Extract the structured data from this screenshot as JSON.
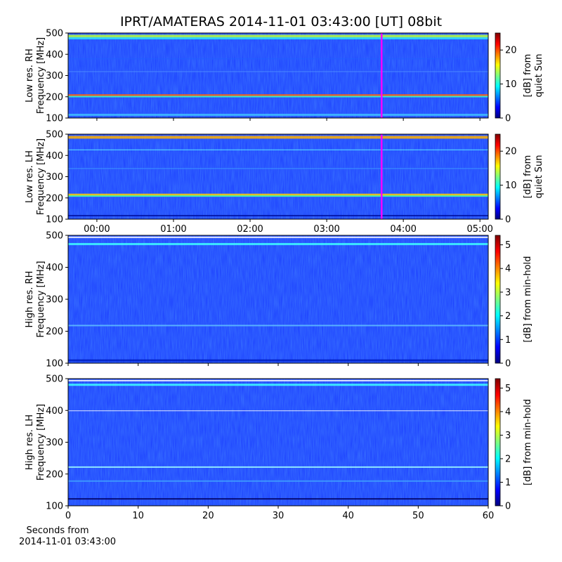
{
  "figure_title": "IPRT/AMATERAS 2014-11-01 03:43:00 [UT]   08bit",
  "chart_data": [
    {
      "type": "heatmap",
      "ylabel": [
        "Low res. RH",
        "Frequency [MHz]"
      ],
      "ylim": [
        100,
        500
      ],
      "yticks": [
        100,
        200,
        300,
        400,
        500
      ],
      "xlim": [
        -22.5,
        306.5
      ],
      "marker": 223,
      "marker_color": "#ff00ff",
      "colorbar_label": [
        "[dB] from",
        "quiet Sun"
      ],
      "clim": [
        0,
        25
      ],
      "cticks": [
        0,
        10,
        20
      ]
    },
    {
      "type": "heatmap",
      "ylabel": [
        "Low res. LH",
        "Frequency [MHz]"
      ],
      "ylim": [
        100,
        500
      ],
      "yticks": [
        100,
        200,
        300,
        400,
        500
      ],
      "xlim": [
        -22.5,
        306.5
      ],
      "marker": 223,
      "marker_color": "#ff00ff",
      "xticks": [
        {
          "value": 0,
          "label": "00:00"
        },
        {
          "value": 60,
          "label": "01:00"
        },
        {
          "value": 120,
          "label": "02:00"
        },
        {
          "value": 180,
          "label": "03:00"
        },
        {
          "value": 240,
          "label": "04:00"
        },
        {
          "value": 300,
          "label": "05:00"
        }
      ],
      "colorbar_label": [
        "[dB] from",
        "quiet Sun"
      ],
      "clim": [
        0,
        25
      ],
      "cticks": [
        0,
        10,
        20
      ]
    },
    {
      "type": "heatmap",
      "ylabel": [
        "High res. RH",
        "Frequency [MHz]"
      ],
      "ylim": [
        100,
        500
      ],
      "yticks": [
        100,
        200,
        300,
        400,
        500
      ],
      "xlim": [
        0,
        60
      ],
      "xticks_unlabeled": [
        0,
        10,
        20,
        30,
        40,
        50,
        60
      ],
      "colorbar_label": [
        "[dB] from min-hold"
      ],
      "clim": [
        0,
        5.4
      ],
      "cticks": [
        0,
        1,
        2,
        3,
        4,
        5
      ]
    },
    {
      "type": "heatmap",
      "ylabel": [
        "High res. LH",
        "Frequency [MHz]"
      ],
      "ylim": [
        100,
        500
      ],
      "yticks": [
        100,
        200,
        300,
        400,
        500
      ],
      "xlim": [
        0,
        60
      ],
      "xticks": [
        0,
        10,
        20,
        30,
        40,
        50,
        60
      ],
      "xlabel": [
        "Seconds from",
        "2014-11-01 03:43:00"
      ],
      "colorbar_label": [
        "[dB] from min-hold"
      ],
      "clim": [
        0,
        5.4
      ],
      "cticks": [
        0,
        1,
        2,
        3,
        4,
        5
      ]
    }
  ]
}
